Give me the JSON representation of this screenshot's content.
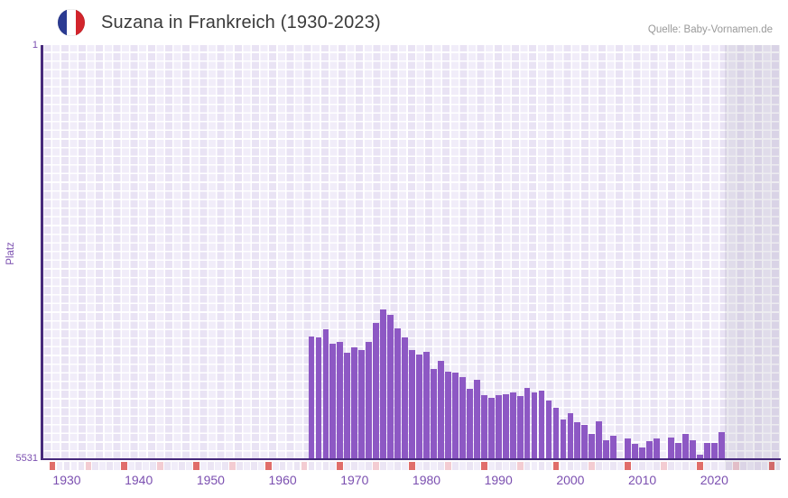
{
  "header": {
    "title": "Suzana in Frankreich (1930-2023)",
    "source": "Quelle: Baby-Vornamen.de",
    "flag_icon": "france-flag-icon"
  },
  "chart_data": {
    "type": "bar",
    "title": "Suzana in Frankreich (1930-2023)",
    "xlabel": "",
    "ylabel": "Platz",
    "y_axis": {
      "top_label": "1",
      "bottom_label": "5531",
      "min": 1,
      "max": 5531,
      "inverted": true
    },
    "x_ticks": [
      "1930",
      "1940",
      "1950",
      "1960",
      "1970",
      "1980",
      "1990",
      "2000",
      "2010",
      "2020"
    ],
    "x_range": [
      1928,
      2029
    ],
    "grid": true,
    "legend_position": "none",
    "no_data_from": 2022,
    "series": [
      {
        "name": "Platz",
        "x": [
          1964,
          1965,
          1966,
          1967,
          1968,
          1969,
          1970,
          1971,
          1972,
          1973,
          1974,
          1975,
          1976,
          1977,
          1978,
          1979,
          1980,
          1981,
          1982,
          1983,
          1984,
          1985,
          1986,
          1987,
          1988,
          1989,
          1990,
          1991,
          1992,
          1993,
          1994,
          1995,
          1996,
          1997,
          1998,
          1999,
          2000,
          2001,
          2002,
          2003,
          2004,
          2005,
          2006,
          2007,
          2008,
          2009,
          2010,
          2011,
          2012,
          2013,
          2014,
          2015,
          2016,
          2017,
          2018,
          2019,
          2020,
          2021
        ],
        "values": [
          3900,
          3910,
          3810,
          4000,
          3970,
          4120,
          4040,
          4080,
          3970,
          3720,
          3540,
          3610,
          3790,
          3910,
          4080,
          4140,
          4110,
          4340,
          4230,
          4370,
          4380,
          4450,
          4600,
          4480,
          4690,
          4720,
          4690,
          4670,
          4650,
          4700,
          4590,
          4650,
          4630,
          4760,
          4850,
          5010,
          4930,
          5050,
          5090,
          5200,
          5040,
          5290,
          5230,
          null,
          5270,
          5340,
          5390,
          5300,
          5270,
          null,
          5250,
          5330,
          5210,
          5290,
          5480,
          5330,
          5320,
          5180
        ]
      }
    ],
    "colors": {
      "bar": "#8d58c4",
      "axis_line": "#46297b",
      "tick_label": "#7b4fb0",
      "tick_major_square": "#e06d6a",
      "tick_minor_square": "#f3ccd2",
      "strip_square_a": "#ebe5f4",
      "strip_square_b": "#f1edf9",
      "plot_bg_a": "#e9e3f4",
      "plot_bg_b": "#f1edf9"
    }
  }
}
